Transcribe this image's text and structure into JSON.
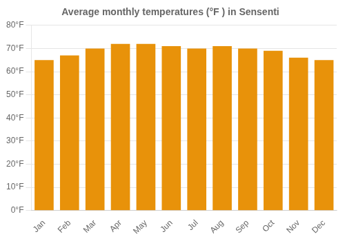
{
  "chart_data": {
    "type": "bar",
    "title": "Average monthly temperatures (°F ) in Sensenti",
    "categories": [
      "Jan",
      "Feb",
      "Mar",
      "Apr",
      "May",
      "Jun",
      "Jul",
      "Aug",
      "Sep",
      "Oct",
      "Nov",
      "Dec"
    ],
    "values": [
      65,
      67,
      70,
      72,
      72,
      71,
      70,
      71,
      70,
      69,
      66,
      65
    ],
    "color": "#E8920A",
    "ylim": [
      0,
      80
    ],
    "yticks": [
      {
        "value": 0,
        "label": "0°F"
      },
      {
        "value": 10,
        "label": "10°F"
      },
      {
        "value": 20,
        "label": "20°F"
      },
      {
        "value": 30,
        "label": "30°F"
      },
      {
        "value": 40,
        "label": "40°F"
      },
      {
        "value": 50,
        "label": "50°F"
      },
      {
        "value": 60,
        "label": "60°F"
      },
      {
        "value": 70,
        "label": "70°F"
      },
      {
        "value": 80,
        "label": "80°F"
      }
    ],
    "grid": true
  }
}
